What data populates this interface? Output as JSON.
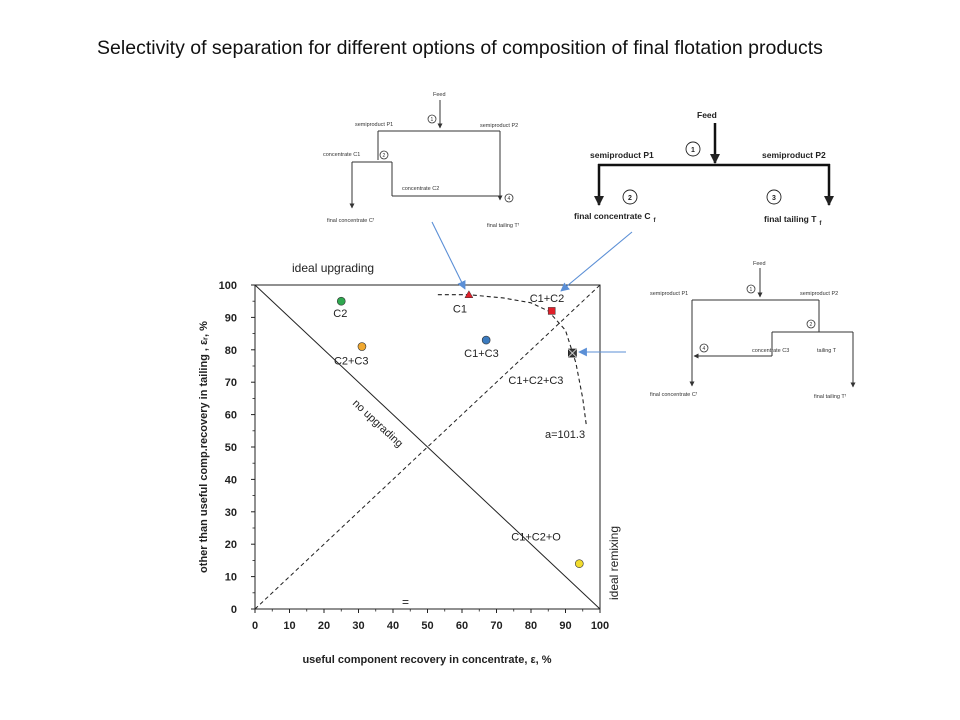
{
  "slide": {
    "title": "Selectivity of separation for different options of composition of final flotation products"
  },
  "chart_data": {
    "type": "scatter",
    "xlabel": "useful component recovery in concentrate, ε, %",
    "ylabel": "other than useful comp.recovery in tailing , εᵣ, %",
    "xlim": [
      0,
      100
    ],
    "ylim": [
      0,
      100
    ],
    "xticks": [
      "0",
      "10",
      "20",
      "30",
      "40",
      "50",
      "60",
      "70",
      "80",
      "90",
      "100"
    ],
    "yticks": [
      "0",
      "10",
      "20",
      "30",
      "40",
      "50",
      "60",
      "70",
      "80",
      "90",
      "100"
    ],
    "grid": false,
    "points": [
      {
        "label": "C2",
        "x": 25,
        "y": 95,
        "color": "#2fa84f"
      },
      {
        "label": "C1",
        "x": 62,
        "y": 97,
        "color": "#e0202a"
      },
      {
        "label": "C1+C2",
        "x": 86,
        "y": 92,
        "color": "#e0202a"
      },
      {
        "label": "C2+C3",
        "x": 31,
        "y": 81,
        "color": "#f0a830"
      },
      {
        "label": "C1+C3",
        "x": 67,
        "y": 83,
        "color": "#3b7bbf"
      },
      {
        "label": "C1+C2+C3",
        "x": 92,
        "y": 79,
        "color": "#3a3a3a"
      },
      {
        "label": "C1+C2+O",
        "x": 94,
        "y": 14,
        "color": "#f2dc2e"
      }
    ],
    "lines": {
      "no_upgrading": {
        "from": [
          0,
          100
        ],
        "to": [
          100,
          0
        ]
      },
      "ideal_remixing": {
        "from": [
          0,
          0
        ],
        "to": [
          100,
          100
        ]
      },
      "selectivity_curve": {
        "label": "a=101.3",
        "points": [
          [
            53,
            97
          ],
          [
            62,
            97
          ],
          [
            72,
            96
          ],
          [
            80,
            94.5
          ],
          [
            85,
            92
          ],
          [
            90,
            86
          ],
          [
            93,
            76
          ],
          [
            95,
            65
          ],
          [
            96,
            57
          ]
        ]
      }
    },
    "annotations": {
      "ideal_upgrading": "ideal upgrading",
      "no_upgrading": "no upgrading",
      "ideal_remixing": "ideal remixing",
      "curve_label": "a=101.3",
      "origin_mark": "="
    }
  },
  "diagrams": {
    "top": {
      "feed": "Feed",
      "p1": "semiproduct P1",
      "p2": "semiproduct P2",
      "c1": "concentrate  C1",
      "c2": "concentrate  C2",
      "final_c": "final concentrate  Cᶠ",
      "final_t": "final tailing  Tᶠ",
      "n1": "1",
      "n2": "2",
      "n4": "4"
    },
    "big": {
      "feed": "Feed",
      "p1": "semiproduct P1",
      "p2": "semiproduct P2",
      "final_c": "final concentrate C",
      "final_c_sub": "f",
      "final_t": "final tailing T",
      "final_t_sub": "f",
      "n1": "1",
      "n2": "2",
      "n3": "3"
    },
    "right": {
      "feed": "Feed",
      "p1": "semiproduct P1",
      "p2": "semiproduct P2",
      "c3": "concentrate  C3",
      "tailing": "tailing  T",
      "final_c": "final concentrate  Cᶠ",
      "final_t": "final tailing  Tᶠ",
      "n1": "1",
      "n2": "2",
      "n4": "4"
    }
  },
  "colors": {
    "arrow": "#5b8fd6",
    "axis": "#222222",
    "text": "#222222"
  }
}
